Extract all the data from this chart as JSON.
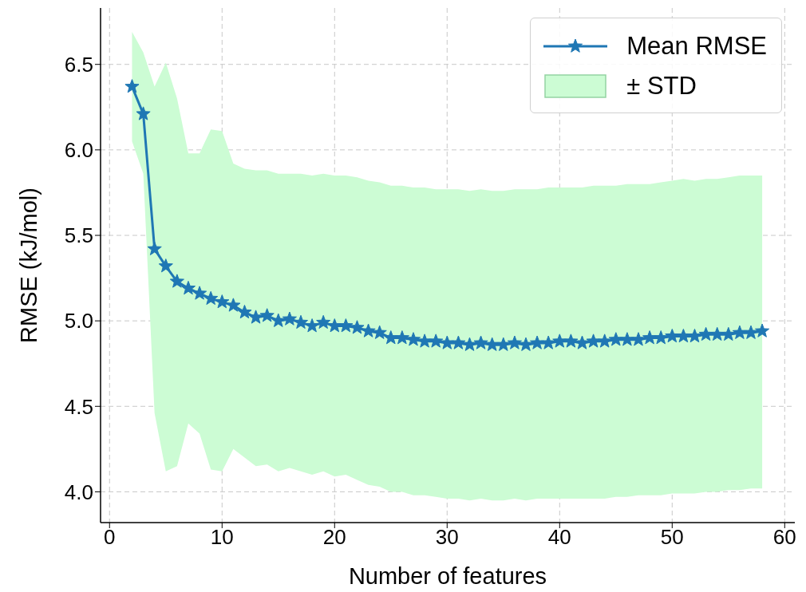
{
  "chart_data": {
    "type": "line",
    "xlabel": "Number of features",
    "ylabel": "RMSE (kJ/mol)",
    "x": [
      2,
      3,
      4,
      5,
      6,
      7,
      8,
      9,
      10,
      11,
      12,
      13,
      14,
      15,
      16,
      17,
      18,
      19,
      20,
      21,
      22,
      23,
      24,
      25,
      26,
      27,
      28,
      29,
      30,
      31,
      32,
      33,
      34,
      35,
      36,
      37,
      38,
      39,
      40,
      41,
      42,
      43,
      44,
      45,
      46,
      47,
      48,
      49,
      50,
      51,
      52,
      53,
      54,
      55,
      56,
      57,
      58
    ],
    "series": [
      {
        "name": "Mean RMSE",
        "color": "#1f77b4",
        "values": [
          6.37,
          6.21,
          5.42,
          5.32,
          5.23,
          5.19,
          5.16,
          5.13,
          5.11,
          5.09,
          5.05,
          5.02,
          5.03,
          5.0,
          5.01,
          4.99,
          4.97,
          4.99,
          4.97,
          4.97,
          4.96,
          4.94,
          4.93,
          4.9,
          4.9,
          4.89,
          4.88,
          4.88,
          4.87,
          4.87,
          4.86,
          4.87,
          4.86,
          4.86,
          4.87,
          4.86,
          4.87,
          4.87,
          4.88,
          4.88,
          4.87,
          4.88,
          4.88,
          4.89,
          4.89,
          4.89,
          4.9,
          4.9,
          4.91,
          4.91,
          4.91,
          4.92,
          4.92,
          4.92,
          4.93,
          4.93,
          4.94
        ],
        "lower": [
          6.05,
          5.86,
          4.46,
          4.12,
          4.15,
          4.4,
          4.34,
          4.13,
          4.12,
          4.25,
          4.2,
          4.15,
          4.16,
          4.12,
          4.14,
          4.12,
          4.1,
          4.12,
          4.09,
          4.1,
          4.07,
          4.04,
          4.03,
          4.0,
          4.0,
          3.98,
          3.98,
          3.97,
          3.96,
          3.96,
          3.95,
          3.96,
          3.95,
          3.95,
          3.96,
          3.95,
          3.96,
          3.96,
          3.96,
          3.96,
          3.96,
          3.96,
          3.96,
          3.97,
          3.97,
          3.98,
          3.98,
          3.98,
          3.99,
          3.99,
          3.99,
          4.0,
          4.0,
          4.01,
          4.01,
          4.02,
          4.02
        ],
        "upper": [
          6.69,
          6.57,
          6.37,
          6.51,
          6.3,
          5.98,
          5.98,
          6.12,
          6.11,
          5.92,
          5.89,
          5.88,
          5.88,
          5.86,
          5.86,
          5.86,
          5.85,
          5.86,
          5.85,
          5.85,
          5.84,
          5.82,
          5.81,
          5.79,
          5.79,
          5.78,
          5.78,
          5.77,
          5.77,
          5.77,
          5.76,
          5.77,
          5.76,
          5.76,
          5.77,
          5.77,
          5.77,
          5.78,
          5.78,
          5.78,
          5.78,
          5.79,
          5.79,
          5.79,
          5.8,
          5.8,
          5.8,
          5.81,
          5.82,
          5.83,
          5.82,
          5.83,
          5.83,
          5.84,
          5.85,
          5.85,
          5.85
        ]
      }
    ],
    "annotations": [
      "± STD"
    ],
    "xlim": [
      -0.8,
      60.9
    ],
    "ylim": [
      3.82,
      6.83
    ],
    "xticks": [
      0,
      10,
      20,
      30,
      40,
      50,
      60
    ],
    "yticks": [
      {
        "value": 4,
        "label": "4.0"
      },
      {
        "value": 4.5,
        "label": "4.5"
      },
      {
        "value": 5,
        "label": "5.0"
      },
      {
        "value": 5.5,
        "label": "5.5"
      },
      {
        "value": 6,
        "label": "6.0"
      },
      {
        "value": 6.5,
        "label": "6.5"
      }
    ],
    "grid": true,
    "legend": "top right",
    "marker": "star",
    "line_style": "solid"
  }
}
